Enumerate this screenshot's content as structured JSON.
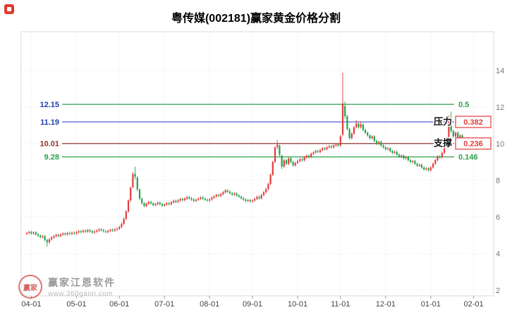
{
  "header": {
    "title": "粤传媒(002181)赢家黄金价格分割"
  },
  "chart_data": {
    "type": "candlestick",
    "title": "粤传媒(002181)赢家黄金价格分割",
    "ylim": [
      1.7,
      16.1
    ],
    "y_axis": {
      "ticks": [
        14,
        12,
        10,
        8,
        6,
        4,
        2
      ]
    },
    "x_axis": {
      "ticks": [
        {
          "label": "04-01",
          "day": 2
        },
        {
          "label": "05-01",
          "day": 22
        },
        {
          "label": "06-01",
          "day": 41
        },
        {
          "label": "07-01",
          "day": 61
        },
        {
          "label": "08-01",
          "day": 81
        },
        {
          "label": "09-01",
          "day": 100
        },
        {
          "label": "10-01",
          "day": 120
        },
        {
          "label": "11-01",
          "day": 139
        },
        {
          "label": "12-01",
          "day": 159
        },
        {
          "label": "01-01",
          "day": 179
        },
        {
          "label": "02-01",
          "day": 198
        }
      ]
    },
    "golden_section_levels": [
      {
        "price": 12.15,
        "ratio": "0.5",
        "line_color": "#2aa14d",
        "label_color": "#1d3faf",
        "boxed": false
      },
      {
        "price": 11.19,
        "ratio": "0.382",
        "line_color": "#4a4ad0",
        "label_color": "#1d3faf",
        "boxed": true,
        "tag": "压力",
        "role": "resistance"
      },
      {
        "price": 10.01,
        "ratio": "0.236",
        "line_color": "#93342e",
        "label_color": "#93342e",
        "boxed": true,
        "tag": "支撑",
        "role": "support"
      },
      {
        "price": 9.28,
        "ratio": "0.146",
        "line_color": "#2aa14d",
        "label_color": "#2aa14d",
        "boxed": false
      }
    ],
    "colors": {
      "up": "#e23b3b",
      "down": "#1fa24d",
      "grid": "#ebebeb",
      "axis_text": "#7a7a7a",
      "frame": "#d9d9d9",
      "box": "#e23b3b"
    },
    "ohlc": [
      [
        5.08,
        5.19,
        5.01,
        5.12
      ],
      [
        5.12,
        5.25,
        5.05,
        5.18
      ],
      [
        5.18,
        5.25,
        5.03,
        5.1
      ],
      [
        5.1,
        5.22,
        5.03,
        5.15
      ],
      [
        5.15,
        5.22,
        4.98,
        5.05
      ],
      [
        5.05,
        5.12,
        4.91,
        4.98
      ],
      [
        4.98,
        5.05,
        4.83,
        4.9
      ],
      [
        4.9,
        5.02,
        4.83,
        4.95
      ],
      [
        4.95,
        5.02,
        4.68,
        4.75
      ],
      [
        4.75,
        4.8,
        4.38,
        4.62
      ],
      [
        4.62,
        4.85,
        4.55,
        4.78
      ],
      [
        4.78,
        4.95,
        4.71,
        4.88
      ],
      [
        4.88,
        5.02,
        4.81,
        4.95
      ],
      [
        4.95,
        5.09,
        4.88,
        5.02
      ],
      [
        5.02,
        5.09,
        4.89,
        4.96
      ],
      [
        4.96,
        5.11,
        4.89,
        5.04
      ],
      [
        5.04,
        5.17,
        4.97,
        5.1
      ],
      [
        5.1,
        5.17,
        4.98,
        5.05
      ],
      [
        5.05,
        5.19,
        4.98,
        5.12
      ],
      [
        5.12,
        5.19,
        5.01,
        5.08
      ],
      [
        5.08,
        5.21,
        5.01,
        5.14
      ],
      [
        5.14,
        5.21,
        5.03,
        5.1
      ],
      [
        5.1,
        5.23,
        5.03,
        5.16
      ],
      [
        5.16,
        5.29,
        5.09,
        5.22
      ],
      [
        5.22,
        5.29,
        5.11,
        5.18
      ],
      [
        5.18,
        5.32,
        5.11,
        5.25
      ],
      [
        5.25,
        5.32,
        5.13,
        5.2
      ],
      [
        5.2,
        5.35,
        5.13,
        5.28
      ],
      [
        5.28,
        5.35,
        5.15,
        5.22
      ],
      [
        5.22,
        5.29,
        5.08,
        5.15
      ],
      [
        5.15,
        5.27,
        5.08,
        5.2
      ],
      [
        5.2,
        5.33,
        5.13,
        5.26
      ],
      [
        5.26,
        5.39,
        5.19,
        5.32
      ],
      [
        5.32,
        5.39,
        5.21,
        5.28
      ],
      [
        5.28,
        5.35,
        5.15,
        5.22
      ],
      [
        5.22,
        5.29,
        5.11,
        5.18
      ],
      [
        5.18,
        5.31,
        5.11,
        5.24
      ],
      [
        5.24,
        5.37,
        5.17,
        5.3
      ],
      [
        5.3,
        5.37,
        5.19,
        5.26
      ],
      [
        5.26,
        5.39,
        5.19,
        5.32
      ],
      [
        5.32,
        5.43,
        5.25,
        5.36
      ],
      [
        5.36,
        5.52,
        5.29,
        5.45
      ],
      [
        5.45,
        5.69,
        5.38,
        5.62
      ],
      [
        5.62,
        5.97,
        5.55,
        5.9
      ],
      [
        5.9,
        6.37,
        5.83,
        6.3
      ],
      [
        6.3,
        6.97,
        6.23,
        6.9
      ],
      [
        6.9,
        7.67,
        6.83,
        7.6
      ],
      [
        7.62,
        8.45,
        7.58,
        8.35
      ],
      [
        8.35,
        8.75,
        8.05,
        8.2
      ],
      [
        8.15,
        8.22,
        7.4,
        7.5
      ],
      [
        7.5,
        7.55,
        6.93,
        7.0
      ],
      [
        7.0,
        7.07,
        6.68,
        6.75
      ],
      [
        6.75,
        6.82,
        6.53,
        6.6
      ],
      [
        6.6,
        6.79,
        6.53,
        6.72
      ],
      [
        6.72,
        6.89,
        6.65,
        6.82
      ],
      [
        6.82,
        6.89,
        6.67,
        6.74
      ],
      [
        6.74,
        6.81,
        6.58,
        6.65
      ],
      [
        6.65,
        6.77,
        6.58,
        6.7
      ],
      [
        6.7,
        6.85,
        6.63,
        6.78
      ],
      [
        6.78,
        6.85,
        6.63,
        6.7
      ],
      [
        6.7,
        6.77,
        6.55,
        6.62
      ],
      [
        6.62,
        6.75,
        6.55,
        6.68
      ],
      [
        6.68,
        6.82,
        6.61,
        6.75
      ],
      [
        6.75,
        6.82,
        6.63,
        6.7
      ],
      [
        6.7,
        6.87,
        6.63,
        6.8
      ],
      [
        6.8,
        6.95,
        6.73,
        6.88
      ],
      [
        6.88,
        6.95,
        6.75,
        6.82
      ],
      [
        6.82,
        6.97,
        6.75,
        6.9
      ],
      [
        6.9,
        7.05,
        6.83,
        6.98
      ],
      [
        6.98,
        7.05,
        6.85,
        6.92
      ],
      [
        6.92,
        7.07,
        6.85,
        7.0
      ],
      [
        7.0,
        7.15,
        6.93,
        7.08
      ],
      [
        7.08,
        7.15,
        6.95,
        7.02
      ],
      [
        7.02,
        7.09,
        6.88,
        6.95
      ],
      [
        6.95,
        7.02,
        6.81,
        6.88
      ],
      [
        6.88,
        7.01,
        6.81,
        6.94
      ],
      [
        6.94,
        7.07,
        6.87,
        7.0
      ],
      [
        7.0,
        7.13,
        6.93,
        7.06
      ],
      [
        7.06,
        7.13,
        6.93,
        7.0
      ],
      [
        7.0,
        7.07,
        6.87,
        6.94
      ],
      [
        6.94,
        7.01,
        6.83,
        6.9
      ],
      [
        6.9,
        7.03,
        6.83,
        6.96
      ],
      [
        6.96,
        7.12,
        6.89,
        7.05
      ],
      [
        7.05,
        7.19,
        6.98,
        7.12
      ],
      [
        7.12,
        7.27,
        7.05,
        7.2
      ],
      [
        7.2,
        7.27,
        7.08,
        7.15
      ],
      [
        7.15,
        7.32,
        7.08,
        7.25
      ],
      [
        7.25,
        7.42,
        7.18,
        7.35
      ],
      [
        7.35,
        7.52,
        7.28,
        7.45
      ],
      [
        7.45,
        7.52,
        7.31,
        7.38
      ],
      [
        7.38,
        7.45,
        7.23,
        7.3
      ],
      [
        7.3,
        7.37,
        7.15,
        7.22
      ],
      [
        7.22,
        7.35,
        7.15,
        7.28
      ],
      [
        7.28,
        7.35,
        7.11,
        7.18
      ],
      [
        7.18,
        7.25,
        7.03,
        7.1
      ],
      [
        7.1,
        7.17,
        6.95,
        7.02
      ],
      [
        7.02,
        7.09,
        6.88,
        6.95
      ],
      [
        6.95,
        7.02,
        6.81,
        6.88
      ],
      [
        6.88,
        6.99,
        6.81,
        6.92
      ],
      [
        6.92,
        6.99,
        6.78,
        6.85
      ],
      [
        6.85,
        6.97,
        6.78,
        6.9
      ],
      [
        6.9,
        7.05,
        6.83,
        6.98
      ],
      [
        6.98,
        7.17,
        6.91,
        7.1
      ],
      [
        7.1,
        7.17,
        6.95,
        7.02
      ],
      [
        7.02,
        7.27,
        6.95,
        7.2
      ],
      [
        7.2,
        7.42,
        7.13,
        7.35
      ],
      [
        7.35,
        7.59,
        7.28,
        7.52
      ],
      [
        7.52,
        7.87,
        7.45,
        7.8
      ],
      [
        7.8,
        8.37,
        7.73,
        8.3
      ],
      [
        8.3,
        9.07,
        8.23,
        9.0
      ],
      [
        9.0,
        9.87,
        8.93,
        9.8
      ],
      [
        9.82,
        10.2,
        9.7,
        9.95
      ],
      [
        9.9,
        9.95,
        9.3,
        9.4
      ],
      [
        9.35,
        9.4,
        8.62,
        8.75
      ],
      [
        8.75,
        9.17,
        8.68,
        9.1
      ],
      [
        9.1,
        9.17,
        8.83,
        8.9
      ],
      [
        8.9,
        9.27,
        8.83,
        9.2
      ],
      [
        9.2,
        9.27,
        8.93,
        9.0
      ],
      [
        9.0,
        9.07,
        8.75,
        8.82
      ],
      [
        8.82,
        9.02,
        8.75,
        8.95
      ],
      [
        8.95,
        9.12,
        8.88,
        9.05
      ],
      [
        9.05,
        9.22,
        8.98,
        9.15
      ],
      [
        9.15,
        9.22,
        9.03,
        9.1
      ],
      [
        9.1,
        9.32,
        9.03,
        9.25
      ],
      [
        9.25,
        9.42,
        9.18,
        9.35
      ],
      [
        9.35,
        9.42,
        9.21,
        9.28
      ],
      [
        9.28,
        9.52,
        9.21,
        9.45
      ],
      [
        9.45,
        9.59,
        9.38,
        9.52
      ],
      [
        9.52,
        9.67,
        9.45,
        9.6
      ],
      [
        9.6,
        9.67,
        9.48,
        9.55
      ],
      [
        9.55,
        9.72,
        9.48,
        9.65
      ],
      [
        9.65,
        9.82,
        9.58,
        9.75
      ],
      [
        9.75,
        9.82,
        9.63,
        9.7
      ],
      [
        9.7,
        9.87,
        9.63,
        9.8
      ],
      [
        9.8,
        9.93,
        9.73,
        9.86
      ],
      [
        9.86,
        9.93,
        9.73,
        9.8
      ],
      [
        9.8,
        9.97,
        9.73,
        9.9
      ],
      [
        9.9,
        10.03,
        9.83,
        9.96
      ],
      [
        9.96,
        10.03,
        9.83,
        9.9
      ],
      [
        9.9,
        10.47,
        9.83,
        10.4
      ],
      [
        10.5,
        13.88,
        10.4,
        12.2
      ],
      [
        12.05,
        12.3,
        11.35,
        11.5
      ],
      [
        11.5,
        11.57,
        10.73,
        10.8
      ],
      [
        10.8,
        10.87,
        10.23,
        10.3
      ],
      [
        10.3,
        10.62,
        10.23,
        10.55
      ],
      [
        10.55,
        10.97,
        10.48,
        10.9
      ],
      [
        10.9,
        11.3,
        10.83,
        11.1
      ],
      [
        11.1,
        11.17,
        10.83,
        10.9
      ],
      [
        10.9,
        11.22,
        10.83,
        11.05
      ],
      [
        11.05,
        11.12,
        10.68,
        10.75
      ],
      [
        10.75,
        10.82,
        10.53,
        10.6
      ],
      [
        10.6,
        10.67,
        10.38,
        10.45
      ],
      [
        10.45,
        10.52,
        10.23,
        10.3
      ],
      [
        10.3,
        10.47,
        10.23,
        10.4
      ],
      [
        10.4,
        10.47,
        10.08,
        10.15
      ],
      [
        10.15,
        10.22,
        9.93,
        10.0
      ],
      [
        10.0,
        10.17,
        9.93,
        10.1
      ],
      [
        10.1,
        10.17,
        9.83,
        9.9
      ],
      [
        9.9,
        9.97,
        9.73,
        9.8
      ],
      [
        9.8,
        9.87,
        9.63,
        9.7
      ],
      [
        9.7,
        9.82,
        9.63,
        9.75
      ],
      [
        9.75,
        9.82,
        9.53,
        9.6
      ],
      [
        9.6,
        9.67,
        9.43,
        9.5
      ],
      [
        9.5,
        9.62,
        9.43,
        9.55
      ],
      [
        9.55,
        9.62,
        9.33,
        9.4
      ],
      [
        9.4,
        9.47,
        9.23,
        9.3
      ],
      [
        9.3,
        9.42,
        9.23,
        9.35
      ],
      [
        9.35,
        9.42,
        9.13,
        9.2
      ],
      [
        9.2,
        9.32,
        9.13,
        9.25
      ],
      [
        9.25,
        9.32,
        9.03,
        9.1
      ],
      [
        9.1,
        9.17,
        8.93,
        9.0
      ],
      [
        9.0,
        9.12,
        8.93,
        9.05
      ],
      [
        9.05,
        9.12,
        8.83,
        8.9
      ],
      [
        8.9,
        8.97,
        8.73,
        8.8
      ],
      [
        8.8,
        8.92,
        8.73,
        8.85
      ],
      [
        8.85,
        8.92,
        8.63,
        8.7
      ],
      [
        8.7,
        8.77,
        8.53,
        8.6
      ],
      [
        8.6,
        8.72,
        8.53,
        8.65
      ],
      [
        8.65,
        8.72,
        8.48,
        8.55
      ],
      [
        8.55,
        8.77,
        8.48,
        8.7
      ],
      [
        8.7,
        8.97,
        8.63,
        8.9
      ],
      [
        8.9,
        9.17,
        8.83,
        9.1
      ],
      [
        9.1,
        9.37,
        9.03,
        9.3
      ],
      [
        9.3,
        9.37,
        9.18,
        9.25
      ],
      [
        9.25,
        9.57,
        9.18,
        9.5
      ],
      [
        9.5,
        9.87,
        9.43,
        9.8
      ],
      [
        9.8,
        10.37,
        9.73,
        10.3
      ],
      [
        10.35,
        11.55,
        10.3,
        11.2
      ],
      [
        11.4,
        11.75,
        10.6,
        10.7
      ],
      [
        10.7,
        10.77,
        10.33,
        10.4
      ],
      [
        10.4,
        10.67,
        10.33,
        10.6
      ],
      [
        10.6,
        10.67,
        10.23,
        10.3
      ],
      [
        10.3,
        10.52,
        10.23,
        10.45
      ],
      [
        10.45,
        10.52,
        10.28,
        10.35
      ]
    ]
  },
  "watermark": {
    "seal_text": "赢家",
    "brand": "赢家江恩软件",
    "url": "www.360gann.com"
  }
}
